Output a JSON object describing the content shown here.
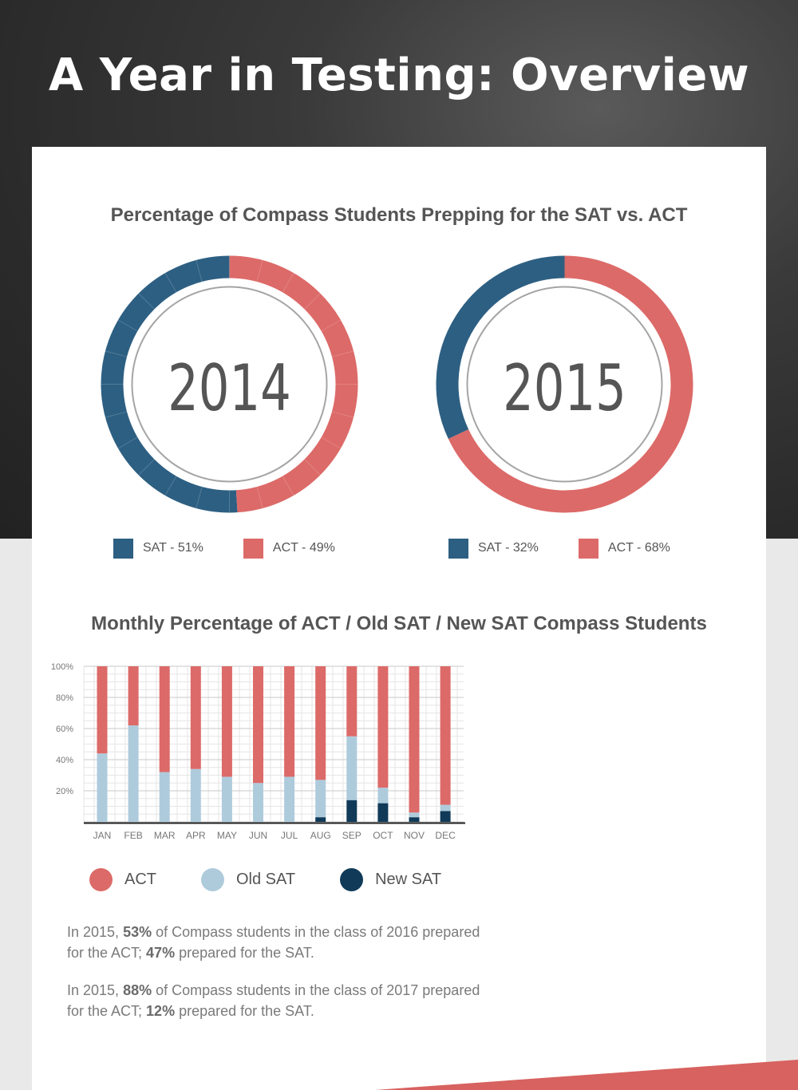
{
  "title": "A Year in Testing: Overview",
  "colors": {
    "sat": "#2d5f82",
    "act": "#dc6a68",
    "old_sat": "#aecbdc",
    "new_sat": "#103a58"
  },
  "donut_section": {
    "heading": "Percentage of Compass Students Prepping for the SAT vs. ACT",
    "donuts": [
      {
        "year": "2014",
        "legend": [
          {
            "label": "SAT - 51%"
          },
          {
            "label": "ACT - 49%"
          }
        ]
      },
      {
        "year": "2015",
        "legend": [
          {
            "label": "SAT - 32%"
          },
          {
            "label": "ACT - 68%"
          }
        ]
      }
    ]
  },
  "bar_section": {
    "heading": "Monthly Percentage of ACT / Old SAT / New SAT Compass Students",
    "legend": [
      {
        "label": "ACT"
      },
      {
        "label": "Old SAT"
      },
      {
        "label": "New SAT"
      }
    ]
  },
  "notes": [
    {
      "pre": "In 2015, ",
      "p1": "53%",
      "mid": " of Compass students in the class of 2016 prepared for the ACT; ",
      "p2": "47%",
      "post": " prepared for the SAT."
    },
    {
      "pre": "In 2015, ",
      "p1": "88%",
      "mid": " of Compass students in the class of 2017 prepared for the ACT; ",
      "p2": "12%",
      "post": " prepared for the SAT."
    }
  ],
  "chart_data": [
    {
      "type": "pie",
      "title": "2014",
      "categories": [
        "SAT",
        "ACT"
      ],
      "values": [
        51,
        49
      ]
    },
    {
      "type": "pie",
      "title": "2015",
      "categories": [
        "SAT",
        "ACT"
      ],
      "values": [
        32,
        68
      ]
    },
    {
      "type": "bar",
      "stacked": true,
      "title": "Monthly Percentage of ACT / Old SAT / New SAT Compass Students",
      "categories": [
        "JAN",
        "FEB",
        "MAR",
        "APR",
        "MAY",
        "JUN",
        "JUL",
        "AUG",
        "SEP",
        "OCT",
        "NOV",
        "DEC"
      ],
      "series": [
        {
          "name": "New SAT",
          "values": [
            0,
            0,
            0,
            0,
            0,
            0,
            0,
            3,
            14,
            12,
            3,
            7
          ]
        },
        {
          "name": "Old SAT",
          "values": [
            44,
            62,
            32,
            34,
            29,
            25,
            29,
            24,
            41,
            10,
            3,
            4
          ]
        },
        {
          "name": "ACT",
          "values": [
            56,
            38,
            68,
            66,
            71,
            75,
            71,
            73,
            45,
            78,
            94,
            89
          ]
        }
      ],
      "ylim": [
        0,
        100
      ],
      "yticks": [
        "20%",
        "40%",
        "60%",
        "80%",
        "100%"
      ],
      "grid": true
    }
  ]
}
